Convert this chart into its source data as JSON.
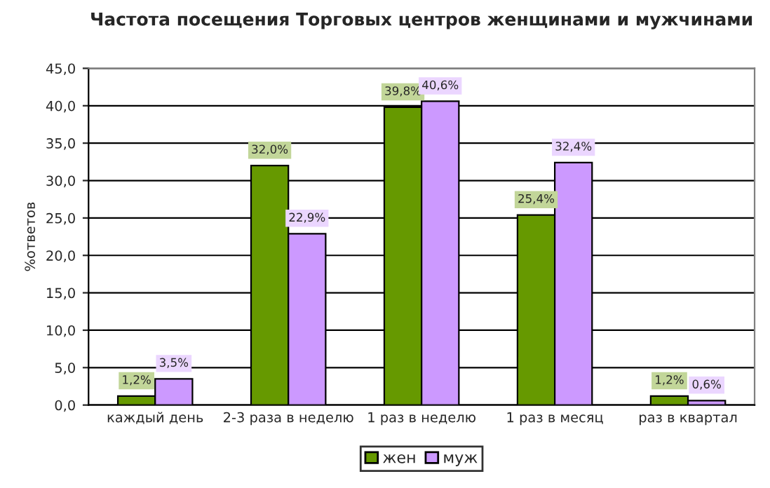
{
  "chart_data": {
    "type": "bar",
    "title": "Частота посещения Торговых центров женщинами и мужчинами",
    "ylabel": "%ответов",
    "categories": [
      "каждый день",
      "2-3 раза в неделю",
      "1 раз в неделю",
      "1 раз в месяц",
      "раз в квартал"
    ],
    "series": [
      {
        "name": "жен",
        "color": "#669900",
        "values": [
          1.2,
          32.0,
          39.8,
          25.4,
          1.2
        ],
        "value_labels": [
          "1,2%",
          "32,0%",
          "39,8%",
          "25,4%",
          "1,2%"
        ]
      },
      {
        "name": "муж",
        "color": "#cc99ff",
        "values": [
          3.5,
          22.9,
          40.6,
          32.4,
          0.6
        ],
        "value_labels": [
          "3,5%",
          "22,9%",
          "40,6%",
          "32,4%",
          "0,6%"
        ]
      }
    ],
    "ylim": [
      0,
      45
    ],
    "yticks": [
      {
        "value": 0,
        "label": "0,0"
      },
      {
        "value": 5,
        "label": "5,0"
      },
      {
        "value": 10,
        "label": "10,0"
      },
      {
        "value": 15,
        "label": "15,0"
      },
      {
        "value": 20,
        "label": "20,0"
      },
      {
        "value": 25,
        "label": "25,0"
      },
      {
        "value": 30,
        "label": "30,0"
      },
      {
        "value": 35,
        "label": "35,0"
      },
      {
        "value": 40,
        "label": "40,0"
      },
      {
        "value": 45,
        "label": "45,0"
      }
    ],
    "grid": "y",
    "legend": "bottom"
  }
}
